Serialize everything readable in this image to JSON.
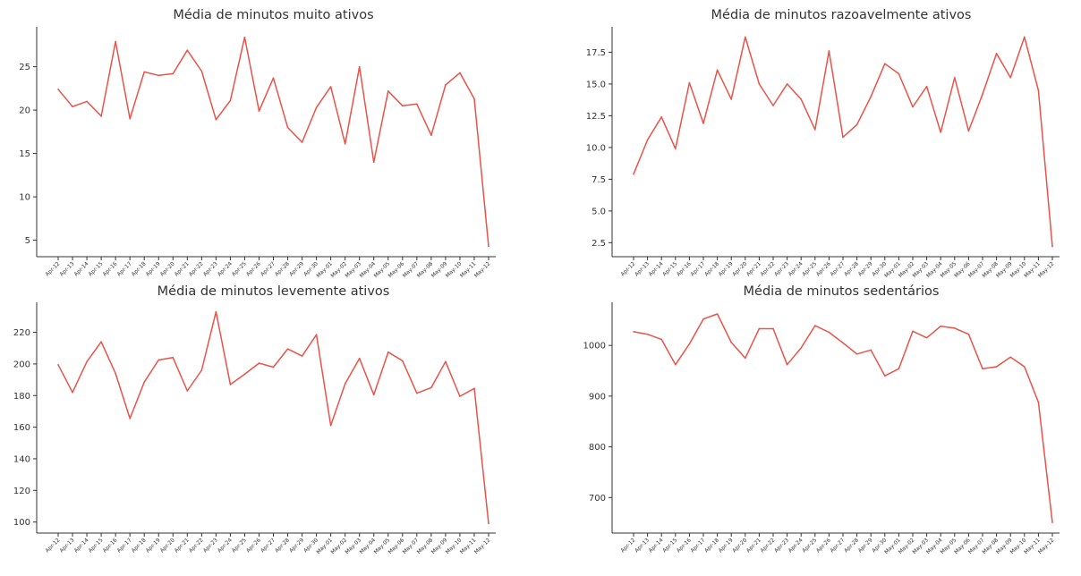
{
  "chart_data": [
    {
      "type": "line",
      "title": "Média de minutos muito ativos",
      "xlabel": "",
      "ylabel": "",
      "color": "#e8534a",
      "grid": false,
      "categories": [
        "Apr-12",
        "Apr-13",
        "Apr-14",
        "Apr-15",
        "Apr-16",
        "Apr-17",
        "Apr-18",
        "Apr-19",
        "Apr-20",
        "Apr-21",
        "Apr-22",
        "Apr-23",
        "Apr-24",
        "Apr-25",
        "Apr-26",
        "Apr-27",
        "Apr-28",
        "Apr-29",
        "Apr-30",
        "May-01",
        "May-02",
        "May-03",
        "May-04",
        "May-05",
        "May-06",
        "May-07",
        "May-08",
        "May-09",
        "May-10",
        "May-11",
        "May-12"
      ],
      "values": [
        22.4,
        20.4,
        21.0,
        19.3,
        27.9,
        19.0,
        24.4,
        24.0,
        24.2,
        26.9,
        24.5,
        18.9,
        21.1,
        28.4,
        19.9,
        23.7,
        18.0,
        16.3,
        20.3,
        22.7,
        16.1,
        25.0,
        14.0,
        22.2,
        20.5,
        20.7,
        17.1,
        22.9,
        24.3,
        21.3,
        4.3
      ],
      "yticks": [
        5,
        10,
        15,
        20,
        25
      ],
      "ylim": [
        3.1,
        29.6
      ]
    },
    {
      "type": "line",
      "title": "Média de minutos razoavelmente ativos",
      "xlabel": "",
      "ylabel": "",
      "color": "#e8534a",
      "grid": false,
      "categories": [
        "Apr-12",
        "Apr-13",
        "Apr-14",
        "Apr-15",
        "Apr-16",
        "Apr-17",
        "Apr-18",
        "Apr-19",
        "Apr-20",
        "Apr-21",
        "Apr-22",
        "Apr-23",
        "Apr-24",
        "Apr-25",
        "Apr-26",
        "Apr-27",
        "Apr-28",
        "Apr-29",
        "Apr-30",
        "May-01",
        "May-02",
        "May-03",
        "May-04",
        "May-05",
        "May-06",
        "May-07",
        "May-08",
        "May-09",
        "May-10",
        "May-11",
        "May-12"
      ],
      "values": [
        7.9,
        10.6,
        12.4,
        9.9,
        15.1,
        11.9,
        16.1,
        13.8,
        18.7,
        15.0,
        13.3,
        15.0,
        13.8,
        11.4,
        17.6,
        10.8,
        11.8,
        14.0,
        16.6,
        15.8,
        13.2,
        14.8,
        11.2,
        15.5,
        11.3,
        14.2,
        17.4,
        15.5,
        18.7,
        14.5,
        2.2
      ],
      "yticks": [
        2.5,
        5.0,
        7.5,
        10.0,
        12.5,
        15.0,
        17.5
      ],
      "yticklabels": [
        "2.5",
        "5.0",
        "7.5",
        "10.0",
        "12.5",
        "15.0",
        "17.5"
      ],
      "ylim": [
        1.4,
        19.5
      ]
    },
    {
      "type": "line",
      "title": "Média de minutos levemente ativos",
      "xlabel": "",
      "ylabel": "",
      "color": "#e8534a",
      "grid": false,
      "categories": [
        "Apr-12",
        "Apr-13",
        "Apr-14",
        "Apr-15",
        "Apr-16",
        "Apr-17",
        "Apr-18",
        "Apr-19",
        "Apr-20",
        "Apr-21",
        "Apr-22",
        "Apr-23",
        "Apr-24",
        "Apr-25",
        "Apr-26",
        "Apr-27",
        "Apr-28",
        "Apr-29",
        "Apr-30",
        "May-01",
        "May-02",
        "May-03",
        "May-04",
        "May-05",
        "May-06",
        "May-07",
        "May-08",
        "May-09",
        "May-10",
        "May-11",
        "May-12"
      ],
      "values": [
        199.5,
        182.0,
        201.5,
        214.0,
        194.0,
        165.5,
        188.5,
        202.5,
        204.0,
        183.0,
        196.0,
        233.0,
        187.0,
        193.5,
        200.5,
        198.0,
        209.5,
        205.0,
        218.5,
        161.0,
        187.5,
        203.5,
        180.5,
        207.5,
        202.0,
        181.5,
        185.0,
        201.5,
        179.5,
        184.5,
        99.0
      ],
      "yticks": [
        100,
        120,
        140,
        160,
        180,
        200,
        220
      ],
      "ylim": [
        93.0,
        239.0
      ]
    },
    {
      "type": "line",
      "title": "Média de minutos sedentários",
      "xlabel": "",
      "ylabel": "",
      "color": "#e8534a",
      "grid": false,
      "categories": [
        "Apr-12",
        "Apr-13",
        "Apr-14",
        "Apr-15",
        "Apr-16",
        "Apr-17",
        "Apr-18",
        "Apr-19",
        "Apr-20",
        "Apr-21",
        "Apr-22",
        "Apr-23",
        "Apr-24",
        "Apr-25",
        "Apr-26",
        "Apr-27",
        "Apr-28",
        "Apr-29",
        "Apr-30",
        "May-01",
        "May-02",
        "May-03",
        "May-04",
        "May-05",
        "May-06",
        "May-07",
        "May-08",
        "May-09",
        "May-10",
        "May-11",
        "May-12"
      ],
      "values": [
        1027,
        1022,
        1012,
        962,
        1003,
        1052,
        1062,
        1006,
        975,
        1033,
        1033,
        962,
        995,
        1039,
        1026,
        1005,
        983,
        991,
        940,
        954,
        1028,
        1015,
        1038,
        1034,
        1022,
        954,
        958,
        977,
        958,
        888,
        651
      ],
      "yticks": [
        700,
        800,
        900,
        1000
      ],
      "ylim": [
        630,
        1085
      ]
    }
  ]
}
